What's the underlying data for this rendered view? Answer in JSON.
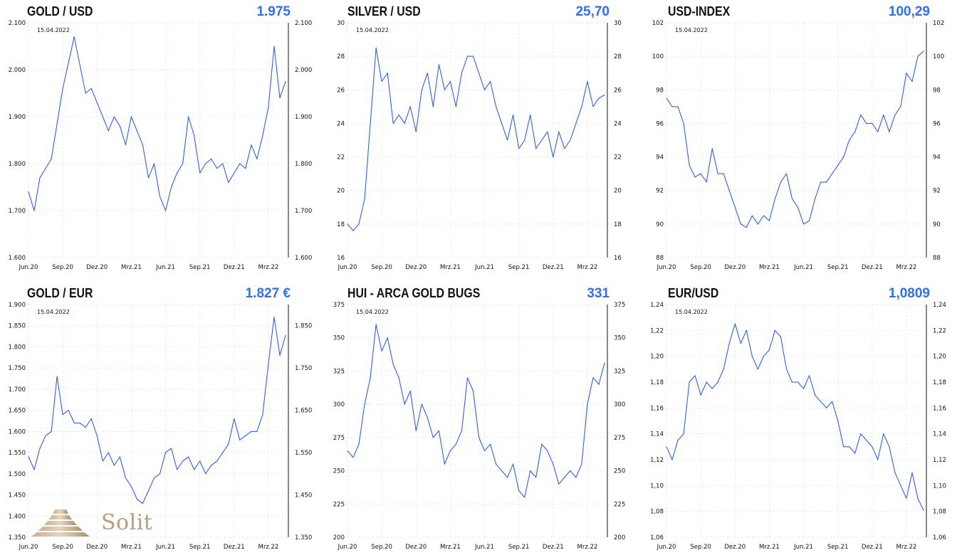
{
  "brand": {
    "logo_text": "Solit"
  },
  "x_labels": [
    "Jun.20",
    "Sep.20",
    "Dez.20",
    "Mrz.21",
    "Jun.21",
    "Sep.21",
    "Dez.21",
    "Mrz.22"
  ],
  "colors": {
    "line": "#2f5fe8",
    "value": "#2f6ff0",
    "grid": "#dcdcdc"
  },
  "chart_data": [
    {
      "type": "line",
      "title": "GOLD / USD",
      "value_label": "1.975",
      "date_label": "15.04.2022",
      "ylim": [
        1600,
        2100
      ],
      "left_ticks": [
        "1.600",
        "1.700",
        "1.800",
        "1.900",
        "2.000",
        "2.100"
      ],
      "right_ticks": [
        "1.600",
        "1.700",
        "1.800",
        "1.900",
        "2.000",
        "2.100"
      ],
      "right_ticks_values": [
        1600,
        1700,
        1800,
        1900,
        2000,
        2100
      ],
      "x": [
        0,
        0.5,
        1,
        2,
        3,
        4,
        5,
        5.5,
        6,
        6.5,
        7,
        7.5,
        8,
        8.5,
        9,
        9.5,
        10,
        10.5,
        11,
        11.5,
        12,
        12.5,
        13,
        13.5,
        14,
        14.5,
        15,
        15.5,
        16,
        16.5,
        17,
        17.5,
        18,
        18.5,
        19,
        19.5,
        20,
        20.5,
        21,
        21.5,
        22,
        22.5
      ],
      "values": [
        1740,
        1700,
        1770,
        1810,
        1960,
        2070,
        1950,
        1960,
        1930,
        1900,
        1870,
        1900,
        1880,
        1840,
        1900,
        1870,
        1840,
        1770,
        1800,
        1730,
        1700,
        1750,
        1780,
        1800,
        1900,
        1860,
        1780,
        1800,
        1810,
        1790,
        1800,
        1760,
        1780,
        1800,
        1790,
        1840,
        1810,
        1860,
        1920,
        2050,
        1940,
        1975
      ]
    },
    {
      "type": "line",
      "title": "SILVER / USD",
      "value_label": "25,70",
      "date_label": "15.04.2022",
      "ylim": [
        16,
        30
      ],
      "left_ticks": [
        "16",
        "18",
        "20",
        "22",
        "24",
        "26",
        "28",
        "30"
      ],
      "right_ticks": [
        "16",
        "18",
        "20",
        "22",
        "24",
        "26",
        "28",
        "30"
      ],
      "right_ticks_values": [
        16,
        18,
        20,
        22,
        24,
        26,
        28,
        30
      ],
      "x": [
        0,
        0.5,
        1,
        1.5,
        2,
        2.5,
        3,
        3.5,
        4,
        4.5,
        5,
        5.5,
        6,
        6.5,
        7,
        7.5,
        8,
        8.5,
        9,
        9.5,
        10,
        10.5,
        11,
        11.5,
        12,
        12.5,
        13,
        13.5,
        14,
        14.5,
        15,
        15.5,
        16,
        16.5,
        17,
        17.5,
        18,
        18.5,
        19,
        19.5,
        20,
        20.5,
        21,
        21.5,
        22,
        22.5
      ],
      "values": [
        18,
        17.6,
        18,
        19.5,
        24,
        28.5,
        26.5,
        27,
        24,
        24.5,
        24,
        25,
        23.5,
        26,
        27,
        25,
        27.5,
        26,
        26.5,
        25,
        27,
        28,
        28,
        27,
        26,
        26.5,
        25,
        24,
        23,
        24.5,
        22.5,
        23,
        24.5,
        22.5,
        23,
        23.5,
        22,
        23.5,
        22.5,
        23,
        24,
        25,
        26.5,
        25,
        25.5,
        25.7
      ]
    },
    {
      "type": "line",
      "title": "USD-INDEX",
      "value_label": "100,29",
      "date_label": "15.04.2022",
      "ylim": [
        88,
        102
      ],
      "left_ticks": [
        "88",
        "90",
        "92",
        "94",
        "96",
        "98",
        "100",
        "102"
      ],
      "right_ticks": [
        "88",
        "90",
        "92",
        "94",
        "96",
        "98",
        "100",
        "102"
      ],
      "right_ticks_values": [
        88,
        90,
        92,
        94,
        96,
        98,
        100,
        102
      ],
      "x": [
        0,
        0.5,
        1,
        1.5,
        2,
        2.5,
        3,
        3.5,
        4,
        4.5,
        5,
        5.5,
        6,
        6.5,
        7,
        7.5,
        8,
        8.5,
        9,
        9.5,
        10,
        10.5,
        11,
        11.5,
        12,
        12.5,
        13,
        13.5,
        14,
        14.5,
        15,
        15.5,
        16,
        16.5,
        17,
        17.5,
        18,
        18.5,
        19,
        19.5,
        20,
        20.5,
        21,
        21.5,
        22,
        22.5
      ],
      "values": [
        97.5,
        97,
        97,
        96,
        93.5,
        92.8,
        93,
        92.5,
        94.5,
        93,
        93,
        92,
        91,
        90,
        89.8,
        90.5,
        90,
        90.5,
        90.2,
        91.5,
        92.5,
        93,
        91.5,
        91,
        90,
        90.2,
        91.5,
        92.5,
        92.5,
        93,
        93.5,
        94,
        95,
        95.5,
        96.5,
        96,
        96,
        95.5,
        96.5,
        95.5,
        96.5,
        97,
        99,
        98.5,
        100,
        100.3
      ]
    },
    {
      "type": "line",
      "title": "GOLD / EUR",
      "value_label": "1.827 €",
      "date_label": "15.04.2022",
      "ylim": [
        1350,
        1900
      ],
      "left_ticks": [
        "1.350",
        "1.400",
        "1.450",
        "1.500",
        "1.550",
        "1.600",
        "1.650",
        "1.700",
        "1.750",
        "1.800",
        "1.850",
        "1.900"
      ],
      "right_ticks": [
        "1.350",
        "1.450",
        "1.550",
        "1.650",
        "1.750",
        "1.850"
      ],
      "right_ticks_values": [
        1350,
        1450,
        1550,
        1650,
        1750,
        1850
      ],
      "x": [
        0,
        0.5,
        1,
        1.5,
        2,
        2.5,
        3,
        3.5,
        4,
        4.5,
        5,
        5.5,
        6,
        6.5,
        7,
        7.5,
        8,
        8.5,
        9,
        9.5,
        10,
        10.5,
        11,
        11.5,
        12,
        12.5,
        13,
        13.5,
        14,
        14.5,
        15,
        15.5,
        16,
        16.5,
        17,
        17.5,
        18,
        18.5,
        19,
        19.5,
        20,
        20.5,
        21,
        21.5,
        22,
        22.5
      ],
      "values": [
        1540,
        1510,
        1560,
        1590,
        1600,
        1730,
        1640,
        1650,
        1620,
        1620,
        1610,
        1630,
        1590,
        1530,
        1550,
        1520,
        1540,
        1490,
        1470,
        1440,
        1430,
        1460,
        1490,
        1500,
        1550,
        1560,
        1510,
        1530,
        1540,
        1510,
        1530,
        1500,
        1520,
        1530,
        1550,
        1570,
        1630,
        1580,
        1590,
        1600,
        1600,
        1640,
        1760,
        1870,
        1780,
        1827
      ]
    },
    {
      "type": "line",
      "title": "HUI - ARCA GOLD BUGS",
      "value_label": "331",
      "date_label": "15.04.2022",
      "ylim": [
        200,
        375
      ],
      "left_ticks": [
        "200",
        "225",
        "250",
        "275",
        "300",
        "325",
        "350",
        "375"
      ],
      "right_ticks": [
        "200",
        "225",
        "250",
        "275",
        "300",
        "325",
        "350",
        "375"
      ],
      "right_ticks_values": [
        200,
        225,
        250,
        275,
        300,
        325,
        350,
        375
      ],
      "x": [
        0,
        0.5,
        1,
        1.5,
        2,
        2.5,
        3,
        3.5,
        4,
        4.5,
        5,
        5.5,
        6,
        6.5,
        7,
        7.5,
        8,
        8.5,
        9,
        9.5,
        10,
        10.5,
        11,
        11.5,
        12,
        12.5,
        13,
        13.5,
        14,
        14.5,
        15,
        15.5,
        16,
        16.5,
        17,
        17.5,
        18,
        18.5,
        19,
        19.5,
        20,
        20.5,
        21,
        21.5,
        22,
        22.5
      ],
      "values": [
        265,
        260,
        270,
        300,
        320,
        360,
        340,
        350,
        330,
        320,
        300,
        310,
        280,
        300,
        290,
        275,
        280,
        255,
        265,
        270,
        280,
        320,
        310,
        275,
        265,
        270,
        255,
        250,
        245,
        255,
        235,
        230,
        250,
        245,
        270,
        265,
        255,
        240,
        245,
        250,
        245,
        255,
        300,
        320,
        315,
        331
      ]
    },
    {
      "type": "line",
      "title": "EUR/USD",
      "value_label": "1,0809",
      "date_label": "15.04.2022",
      "ylim": [
        1.06,
        1.24
      ],
      "left_ticks": [
        "1,06",
        "1,08",
        "1,10",
        "1,12",
        "1,14",
        "1,16",
        "1,18",
        "1,20",
        "1,22",
        "1,24"
      ],
      "right_ticks": [
        "1,06",
        "1,08",
        "1,10",
        "1,12",
        "1,14",
        "1,16",
        "1,18",
        "1,20",
        "1,22",
        "1,24"
      ],
      "right_ticks_values": [
        1.06,
        1.08,
        1.1,
        1.12,
        1.14,
        1.16,
        1.18,
        1.2,
        1.22,
        1.24
      ],
      "x": [
        0,
        0.5,
        1,
        1.5,
        2,
        2.5,
        3,
        3.5,
        4,
        4.5,
        5,
        5.5,
        6,
        6.5,
        7,
        7.5,
        8,
        8.5,
        9,
        9.5,
        10,
        10.5,
        11,
        11.5,
        12,
        12.5,
        13,
        13.5,
        14,
        14.5,
        15,
        15.5,
        16,
        16.5,
        17,
        17.5,
        18,
        18.5,
        19,
        19.5,
        20,
        20.5,
        21,
        21.5,
        22,
        22.5
      ],
      "values": [
        1.13,
        1.12,
        1.135,
        1.14,
        1.18,
        1.185,
        1.17,
        1.18,
        1.175,
        1.18,
        1.19,
        1.21,
        1.225,
        1.21,
        1.22,
        1.2,
        1.19,
        1.2,
        1.205,
        1.22,
        1.215,
        1.19,
        1.18,
        1.18,
        1.175,
        1.185,
        1.17,
        1.165,
        1.16,
        1.165,
        1.15,
        1.13,
        1.13,
        1.125,
        1.14,
        1.135,
        1.13,
        1.12,
        1.14,
        1.13,
        1.11,
        1.1,
        1.09,
        1.11,
        1.09,
        1.0809
      ]
    }
  ]
}
